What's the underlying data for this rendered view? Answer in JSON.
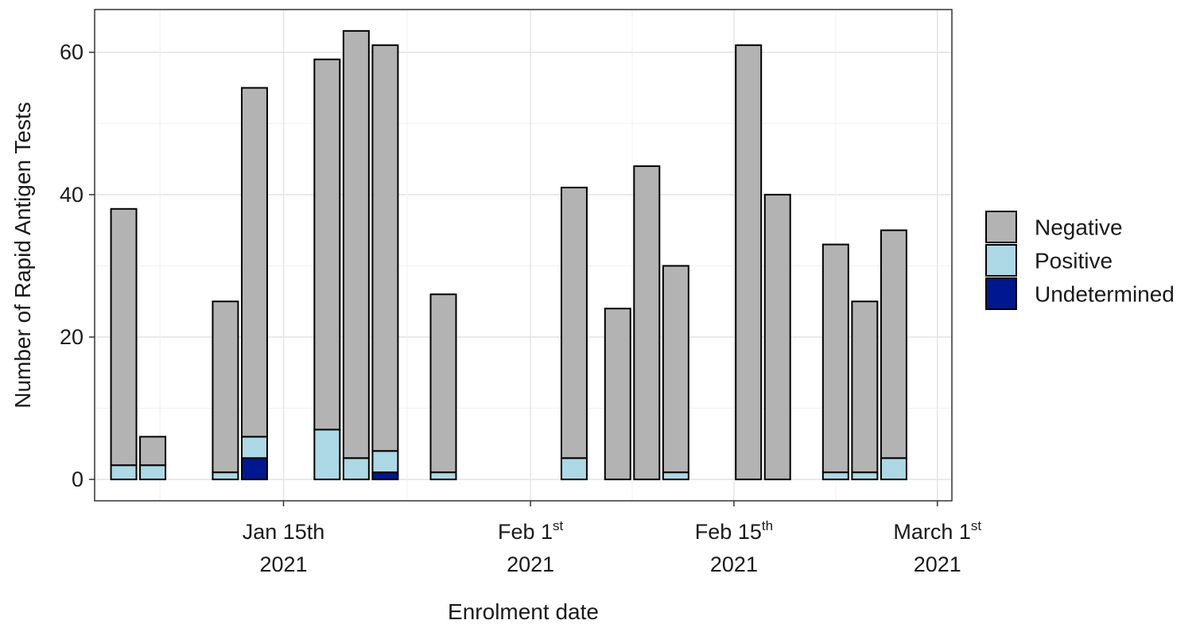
{
  "chart_data": {
    "type": "bar",
    "stacked": true,
    "xlabel": "Enrolment date",
    "ylabel": "Number of Rapid Antigen Tests",
    "ylim": [
      -3,
      66
    ],
    "yticks": [
      0,
      20,
      40,
      60
    ],
    "xlim": [
      "2021-01-02",
      "2021-03-02"
    ],
    "x_ticks": [
      {
        "date": "2021-01-15",
        "label_main": "Jan 15th",
        "label_sup": "",
        "label_year": "2021"
      },
      {
        "date": "2021-02-01",
        "label_main": "Feb 1",
        "label_sup": "st",
        "label_year": "2021"
      },
      {
        "date": "2021-02-15",
        "label_main": "Feb 15",
        "label_sup": "th",
        "label_year": "2021"
      },
      {
        "date": "2021-03-01",
        "label_main": "March 1",
        "label_sup": "st",
        "label_year": "2021"
      }
    ],
    "grid": true,
    "legend_position": "right",
    "series": [
      {
        "name": "Undetermined",
        "color": "#00188f"
      },
      {
        "name": "Positive",
        "color": "#add8e6"
      },
      {
        "name": "Negative",
        "color": "#b3b3b3"
      }
    ],
    "bars": [
      {
        "x": "2021-01-04",
        "Undetermined": 0,
        "Positive": 2,
        "Negative": 36
      },
      {
        "x": "2021-01-06",
        "Undetermined": 0,
        "Positive": 2,
        "Negative": 4
      },
      {
        "x": "2021-01-11",
        "Undetermined": 0,
        "Positive": 1,
        "Negative": 24
      },
      {
        "x": "2021-01-13",
        "Undetermined": 3,
        "Positive": 3,
        "Negative": 49
      },
      {
        "x": "2021-01-18",
        "Undetermined": 0,
        "Positive": 7,
        "Negative": 52
      },
      {
        "x": "2021-01-20",
        "Undetermined": 0,
        "Positive": 3,
        "Negative": 60
      },
      {
        "x": "2021-01-22",
        "Undetermined": 1,
        "Positive": 3,
        "Negative": 57
      },
      {
        "x": "2021-01-26",
        "Undetermined": 0,
        "Positive": 1,
        "Negative": 25
      },
      {
        "x": "2021-02-04",
        "Undetermined": 0,
        "Positive": 3,
        "Negative": 38
      },
      {
        "x": "2021-02-07",
        "Undetermined": 0,
        "Positive": 0,
        "Negative": 24
      },
      {
        "x": "2021-02-09",
        "Undetermined": 0,
        "Positive": 0,
        "Negative": 44
      },
      {
        "x": "2021-02-11",
        "Undetermined": 0,
        "Positive": 1,
        "Negative": 29
      },
      {
        "x": "2021-02-16",
        "Undetermined": 0,
        "Positive": 0,
        "Negative": 61
      },
      {
        "x": "2021-02-18",
        "Undetermined": 0,
        "Positive": 0,
        "Negative": 40
      },
      {
        "x": "2021-02-22",
        "Undetermined": 0,
        "Positive": 1,
        "Negative": 32
      },
      {
        "x": "2021-02-24",
        "Undetermined": 0,
        "Positive": 1,
        "Negative": 24
      },
      {
        "x": "2021-02-26",
        "Undetermined": 0,
        "Positive": 3,
        "Negative": 32
      }
    ],
    "legend": [
      {
        "name": "Negative",
        "color": "#b3b3b3"
      },
      {
        "name": "Positive",
        "color": "#add8e6"
      },
      {
        "name": "Undetermined",
        "color": "#00188f"
      }
    ]
  }
}
